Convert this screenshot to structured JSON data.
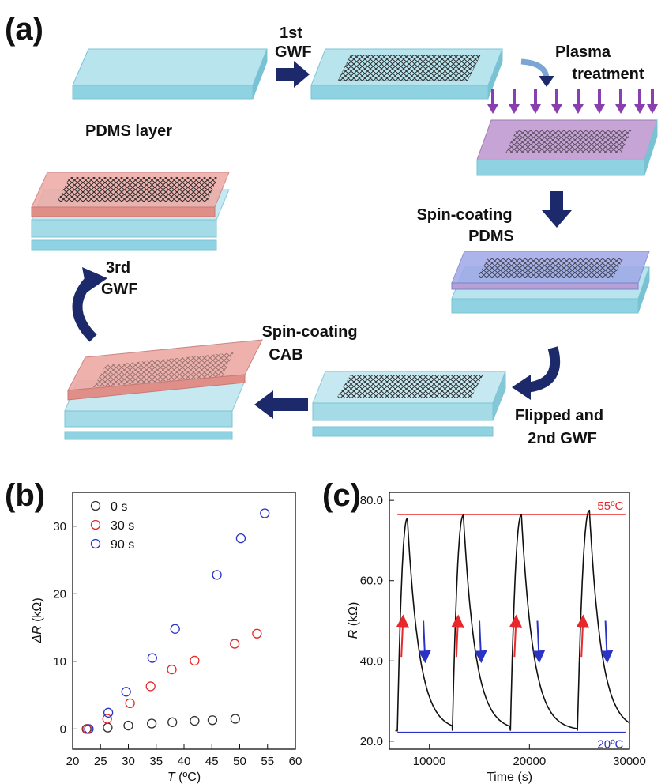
{
  "panels": {
    "a": "(a)",
    "b": "(b)",
    "c": "(c)"
  },
  "schematic": {
    "step_1st_gwf": [
      "1st",
      "GWF"
    ],
    "pdms_layer": "PDMS layer",
    "plasma": [
      "Plasma",
      "treatment"
    ],
    "spin_pdms": [
      "Spin-coating",
      "PDMS"
    ],
    "flipped": [
      "Flipped and",
      "2nd GWF"
    ],
    "spin_cab": [
      "Spin-coating",
      "CAB"
    ],
    "step_3rd_gwf": [
      "3rd",
      "GWF"
    ],
    "colors": {
      "pdms": "#a9dde9",
      "plasma": "#c7a4d6",
      "cab": "#eea9a4",
      "arrow": "#1c2a6b",
      "plasma_arrow": "#8a3fb0"
    }
  },
  "chart_data": [
    {
      "type": "scatter",
      "xlabel_italic": "T",
      "xlabel_unit": " (ºC)",
      "ylabel_italic": "ΔR",
      "ylabel_unit": " (kΩ)",
      "xlim": [
        20,
        60
      ],
      "ylim": [
        -3,
        35
      ],
      "xticks": [
        "20",
        "25",
        "30",
        "35",
        "40",
        "45",
        "50",
        "55",
        "60"
      ],
      "yticks": [
        "0",
        "10",
        "20",
        "30"
      ],
      "legend_position": "top-left",
      "series": [
        {
          "name": "0 s",
          "color": "#333333",
          "x": [
            22.5,
            26.3,
            30.0,
            34.2,
            37.9,
            41.9,
            45.1,
            49.2
          ],
          "y": [
            0,
            0.2,
            0.5,
            0.8,
            1.0,
            1.2,
            1.3,
            1.5
          ]
        },
        {
          "name": "30 s",
          "color": "#e8282b",
          "x": [
            22.6,
            26.2,
            30.3,
            34.0,
            37.8,
            41.9,
            49.1,
            53.1
          ],
          "y": [
            0,
            1.5,
            3.8,
            6.3,
            8.8,
            10.1,
            12.6,
            14.1
          ]
        },
        {
          "name": "90 s",
          "color": "#2b33c6",
          "x": [
            22.9,
            26.4,
            29.6,
            34.3,
            38.4,
            45.9,
            50.2,
            54.5
          ],
          "y": [
            0,
            2.4,
            5.5,
            10.5,
            14.8,
            22.8,
            28.2,
            31.9
          ]
        }
      ]
    },
    {
      "type": "line",
      "xlabel": "Time (s)",
      "ylabel_italic": "R",
      "ylabel_unit": " (kΩ)",
      "xlim": [
        6000,
        30000
      ],
      "ylim": [
        18,
        82
      ],
      "xticks": [
        "10000",
        "20000",
        "30000"
      ],
      "yticks": [
        "20.0",
        "40.0",
        "60.0",
        "80.0"
      ],
      "ref_lines": [
        {
          "label": "55ºC",
          "y": 76.5,
          "color": "#e8282b"
        },
        {
          "label": "20ºC",
          "y": 22.2,
          "color": "#2b33c6"
        }
      ],
      "cycles": [
        {
          "start": 6800,
          "peak_time": 7800,
          "peak": 75.5
        },
        {
          "start": 12300,
          "peak_time": 13400,
          "peak": 76.3
        },
        {
          "start": 18100,
          "peak_time": 19200,
          "peak": 76.4
        },
        {
          "start": 24800,
          "peak_time": 26000,
          "peak": 77.5
        }
      ],
      "end": {
        "x": 30000,
        "y": 22.8
      },
      "line_color": "#111111"
    }
  ]
}
